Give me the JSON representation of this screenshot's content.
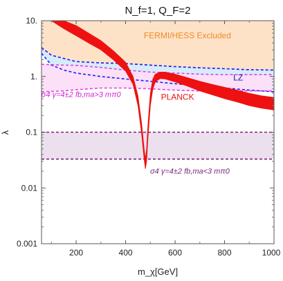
{
  "chart_data": {
    "type": "line",
    "title": "N_f=1, Q_F=2",
    "xlabel": "m_χ[GeV]",
    "ylabel": "λ",
    "xlim": [
      60,
      1000
    ],
    "ylim": [
      0.001,
      10
    ],
    "yscale": "log",
    "grid": false,
    "x_ticks": [
      "200",
      "400",
      "600",
      "800",
      "1000"
    ],
    "x_tick_values": [
      200,
      400,
      600,
      800,
      1000
    ],
    "y_ticks": [
      "0.001",
      "0.01",
      "0.1",
      "1.",
      "10."
    ],
    "y_tick_values": [
      0.001,
      0.01,
      0.1,
      1,
      10
    ],
    "regions": [
      {
        "name": "FERMI/HESS Excluded",
        "color": "#fde2c8",
        "edge_color": "#f0a050",
        "x": [
          60,
          100,
          200,
          300,
          400,
          500,
          600,
          700,
          800,
          900,
          1000
        ],
        "lower": [
          3.3,
          2.4,
          1.85,
          1.75,
          1.7,
          1.6,
          1.5,
          1.43,
          1.38,
          1.32,
          1.3
        ],
        "upper": [
          10,
          10,
          10,
          10,
          10,
          10,
          10,
          10,
          10,
          10,
          10
        ]
      },
      {
        "name": "LZ",
        "color": "#d6ecfb",
        "edge_color": "#1a1aff",
        "x": [
          60,
          100,
          150,
          200,
          300,
          400,
          500,
          600,
          700,
          800,
          900,
          1000
        ],
        "lower": [
          2.6,
          1.6,
          1.3,
          1.15,
          1.0,
          0.9,
          0.82,
          0.74,
          0.68,
          0.62,
          0.57,
          0.53
        ],
        "upper": [
          3.3,
          2.4,
          2.1,
          1.85,
          1.75,
          1.7,
          1.6,
          1.5,
          1.43,
          1.38,
          1.32,
          1.3
        ]
      },
      {
        "name": "σ4γ=4±2 fb, ma>3 mπ0",
        "color": "#fbe0f8",
        "edge_color": "#e040e0",
        "x": [
          60,
          150,
          200,
          300,
          400,
          500,
          600,
          700,
          800,
          900,
          1000
        ],
        "lower": [
          0.53,
          0.55,
          0.58,
          0.62,
          0.62,
          0.6,
          0.57,
          0.55,
          0.55,
          0.55,
          0.55
        ],
        "upper": [
          1.65,
          1.6,
          1.58,
          1.45,
          1.3,
          1.2,
          1.15,
          1.1,
          1.08,
          1.08,
          1.08
        ]
      },
      {
        "name": "σ4γ=4±2 fb, ma<3 mπ0",
        "color": "#ece0ef",
        "edge_color": "#7a1f7a",
        "x": [
          60,
          200,
          400,
          600,
          800,
          1000
        ],
        "lower": [
          0.033,
          0.033,
          0.033,
          0.033,
          0.033,
          0.033
        ],
        "upper": [
          0.1,
          0.1,
          0.1,
          0.1,
          0.1,
          0.1
        ]
      }
    ],
    "series": [
      {
        "name": "PLANCK",
        "color": "#ee1111",
        "x": [
          100,
          150,
          200,
          250,
          300,
          350,
          400,
          430,
          450,
          465,
          475,
          480,
          485,
          490,
          500,
          510,
          520,
          540,
          560,
          600,
          650,
          700,
          750,
          800,
          850,
          900,
          950,
          1000
        ],
        "lower": [
          10,
          7.2,
          5.4,
          4.0,
          3.0,
          2.0,
          1.25,
          0.72,
          0.3,
          0.09,
          0.033,
          0.022,
          0.03,
          0.075,
          0.3,
          0.6,
          0.8,
          0.92,
          0.9,
          0.8,
          0.67,
          0.55,
          0.47,
          0.4,
          0.35,
          0.3,
          0.27,
          0.25
        ],
        "upper": [
          10,
          10,
          8.2,
          6.0,
          4.4,
          2.9,
          1.8,
          1.0,
          0.45,
          0.14,
          0.05,
          0.033,
          0.05,
          0.13,
          0.5,
          0.9,
          1.1,
          1.2,
          1.2,
          1.1,
          0.95,
          0.82,
          0.72,
          0.64,
          0.57,
          0.5,
          0.45,
          0.42
        ]
      }
    ],
    "annotations": [
      {
        "text": "FERMI/HESS Excluded",
        "color": "#f08a24",
        "x": 650,
        "y": 4.8
      },
      {
        "text": "LZ",
        "color": "#1a1aa0",
        "x": 855,
        "y": 0.85
      },
      {
        "text": "PLANCK",
        "color": "#ee1111",
        "x": 610,
        "y": 0.38
      },
      {
        "text": "σ4 γ=4±2 fb,ma>3 mπ0",
        "color": "#d020d0",
        "x": 220,
        "y": 0.43
      },
      {
        "text": "σ4 γ=4±2 fb,ma<3 mπ0",
        "color": "#7a1f7a",
        "x": 660,
        "y": 0.018
      }
    ]
  }
}
